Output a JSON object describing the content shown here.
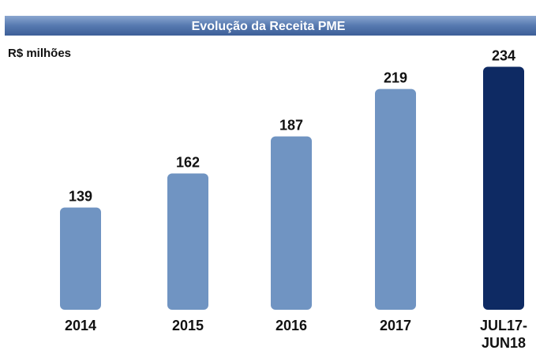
{
  "chart_data": {
    "type": "bar",
    "title": "Evolução da Receita PME",
    "unit_label": "R$ milhões",
    "categories": [
      "2014",
      "2015",
      "2016",
      "2017",
      "JUL17-JUN18"
    ],
    "values": [
      139,
      162,
      187,
      219,
      234
    ],
    "colors": [
      "#7094c2",
      "#7094c2",
      "#7094c2",
      "#7094c2",
      "#0e2a63"
    ],
    "ylim": [
      70,
      250
    ]
  }
}
